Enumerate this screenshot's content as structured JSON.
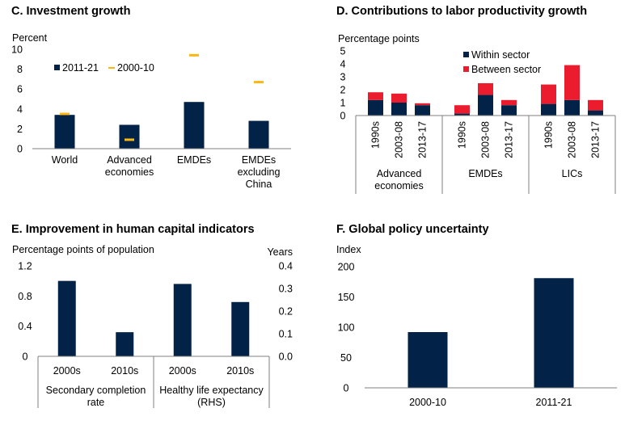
{
  "colors": {
    "navy": "#022247",
    "red": "#eb1c2d",
    "yellow": "#fdb714",
    "axis": "#7f7f7f"
  },
  "chart_data": [
    {
      "id": "C",
      "type": "bar",
      "title": "C. Investment growth",
      "ylabel": "Percent",
      "ylim": [
        0,
        10
      ],
      "yticks": [
        "0",
        "2",
        "4",
        "6",
        "8",
        "10"
      ],
      "ytick_values": [
        0,
        2,
        4,
        6,
        8,
        10
      ],
      "categories": [
        "World",
        "Advanced economies",
        "EMDEs",
        "EMDEs excluding China"
      ],
      "category_lines": [
        [
          "World"
        ],
        [
          "Advanced",
          "economies"
        ],
        [
          "EMDEs"
        ],
        [
          "EMDEs",
          "excluding",
          "China"
        ]
      ],
      "series": [
        {
          "name": "2011-21",
          "kind": "bar",
          "values": [
            3.4,
            2.4,
            4.7,
            2.8
          ]
        },
        {
          "name": "2000-10",
          "kind": "marker",
          "values": [
            3.5,
            0.9,
            9.4,
            6.7
          ]
        }
      ],
      "legend": "top-left"
    },
    {
      "id": "D",
      "type": "bar",
      "stacked": true,
      "title": "D. Contributions to labor productivity growth",
      "ylabel": "Percentage points",
      "ylim": [
        0,
        5
      ],
      "yticks": [
        "0",
        "1",
        "2",
        "3",
        "4",
        "5"
      ],
      "ytick_values": [
        0,
        1,
        2,
        3,
        4,
        5
      ],
      "groups": [
        {
          "name": "Advanced economies",
          "lines": [
            "Advanced",
            "economies"
          ]
        },
        {
          "name": "EMDEs",
          "lines": [
            "EMDEs"
          ]
        },
        {
          "name": "LICs",
          "lines": [
            "LICs"
          ]
        }
      ],
      "categories": [
        "1990s",
        "2003-08",
        "2013-17"
      ],
      "series": [
        {
          "name": "Within sector",
          "values": [
            [
              1.2,
              1.0,
              0.8
            ],
            [
              0.15,
              1.6,
              0.8
            ],
            [
              0.9,
              1.2,
              0.4
            ]
          ]
        },
        {
          "name": "Between sector",
          "values": [
            [
              0.6,
              0.7,
              0.15
            ],
            [
              0.65,
              0.9,
              0.4
            ],
            [
              1.5,
              2.7,
              0.8
            ]
          ]
        }
      ],
      "legend": "top-center"
    },
    {
      "id": "E",
      "type": "bar",
      "title": "E. Improvement in human capital indicators",
      "ylabel": "Percentage points of population",
      "ylabel_right": "Years",
      "ylim": [
        0,
        1.2
      ],
      "ylim_right": [
        0,
        0.4
      ],
      "yticks": [
        "0",
        "0.4",
        "0.8",
        "1.2"
      ],
      "ytick_values": [
        0,
        0.4,
        0.8,
        1.2
      ],
      "yticks_right": [
        "0.0",
        "0.1",
        "0.2",
        "0.3",
        "0.4"
      ],
      "ytick_values_right": [
        0,
        0.1,
        0.2,
        0.3,
        0.4
      ],
      "groups": [
        {
          "name": "Secondary completion rate",
          "lines": [
            "Secondary completion",
            "rate"
          ],
          "axis": "left",
          "categories": [
            "2000s",
            "2010s"
          ],
          "values": [
            1.0,
            0.32
          ]
        },
        {
          "name": "Healthy life expectancy (RHS)",
          "lines": [
            "Healthy life expectancy",
            "(RHS)"
          ],
          "axis": "right",
          "categories": [
            "2000s",
            "2010s"
          ],
          "values": [
            0.32,
            0.24
          ]
        }
      ]
    },
    {
      "id": "F",
      "type": "bar",
      "title": "F. Global policy uncertainty",
      "ylabel": "Index",
      "ylim": [
        0,
        200
      ],
      "yticks": [
        "0",
        "50",
        "100",
        "150",
        "200"
      ],
      "ytick_values": [
        0,
        50,
        100,
        150,
        200
      ],
      "categories": [
        "2000-10",
        "2011-21"
      ],
      "values": [
        92,
        181
      ]
    }
  ]
}
